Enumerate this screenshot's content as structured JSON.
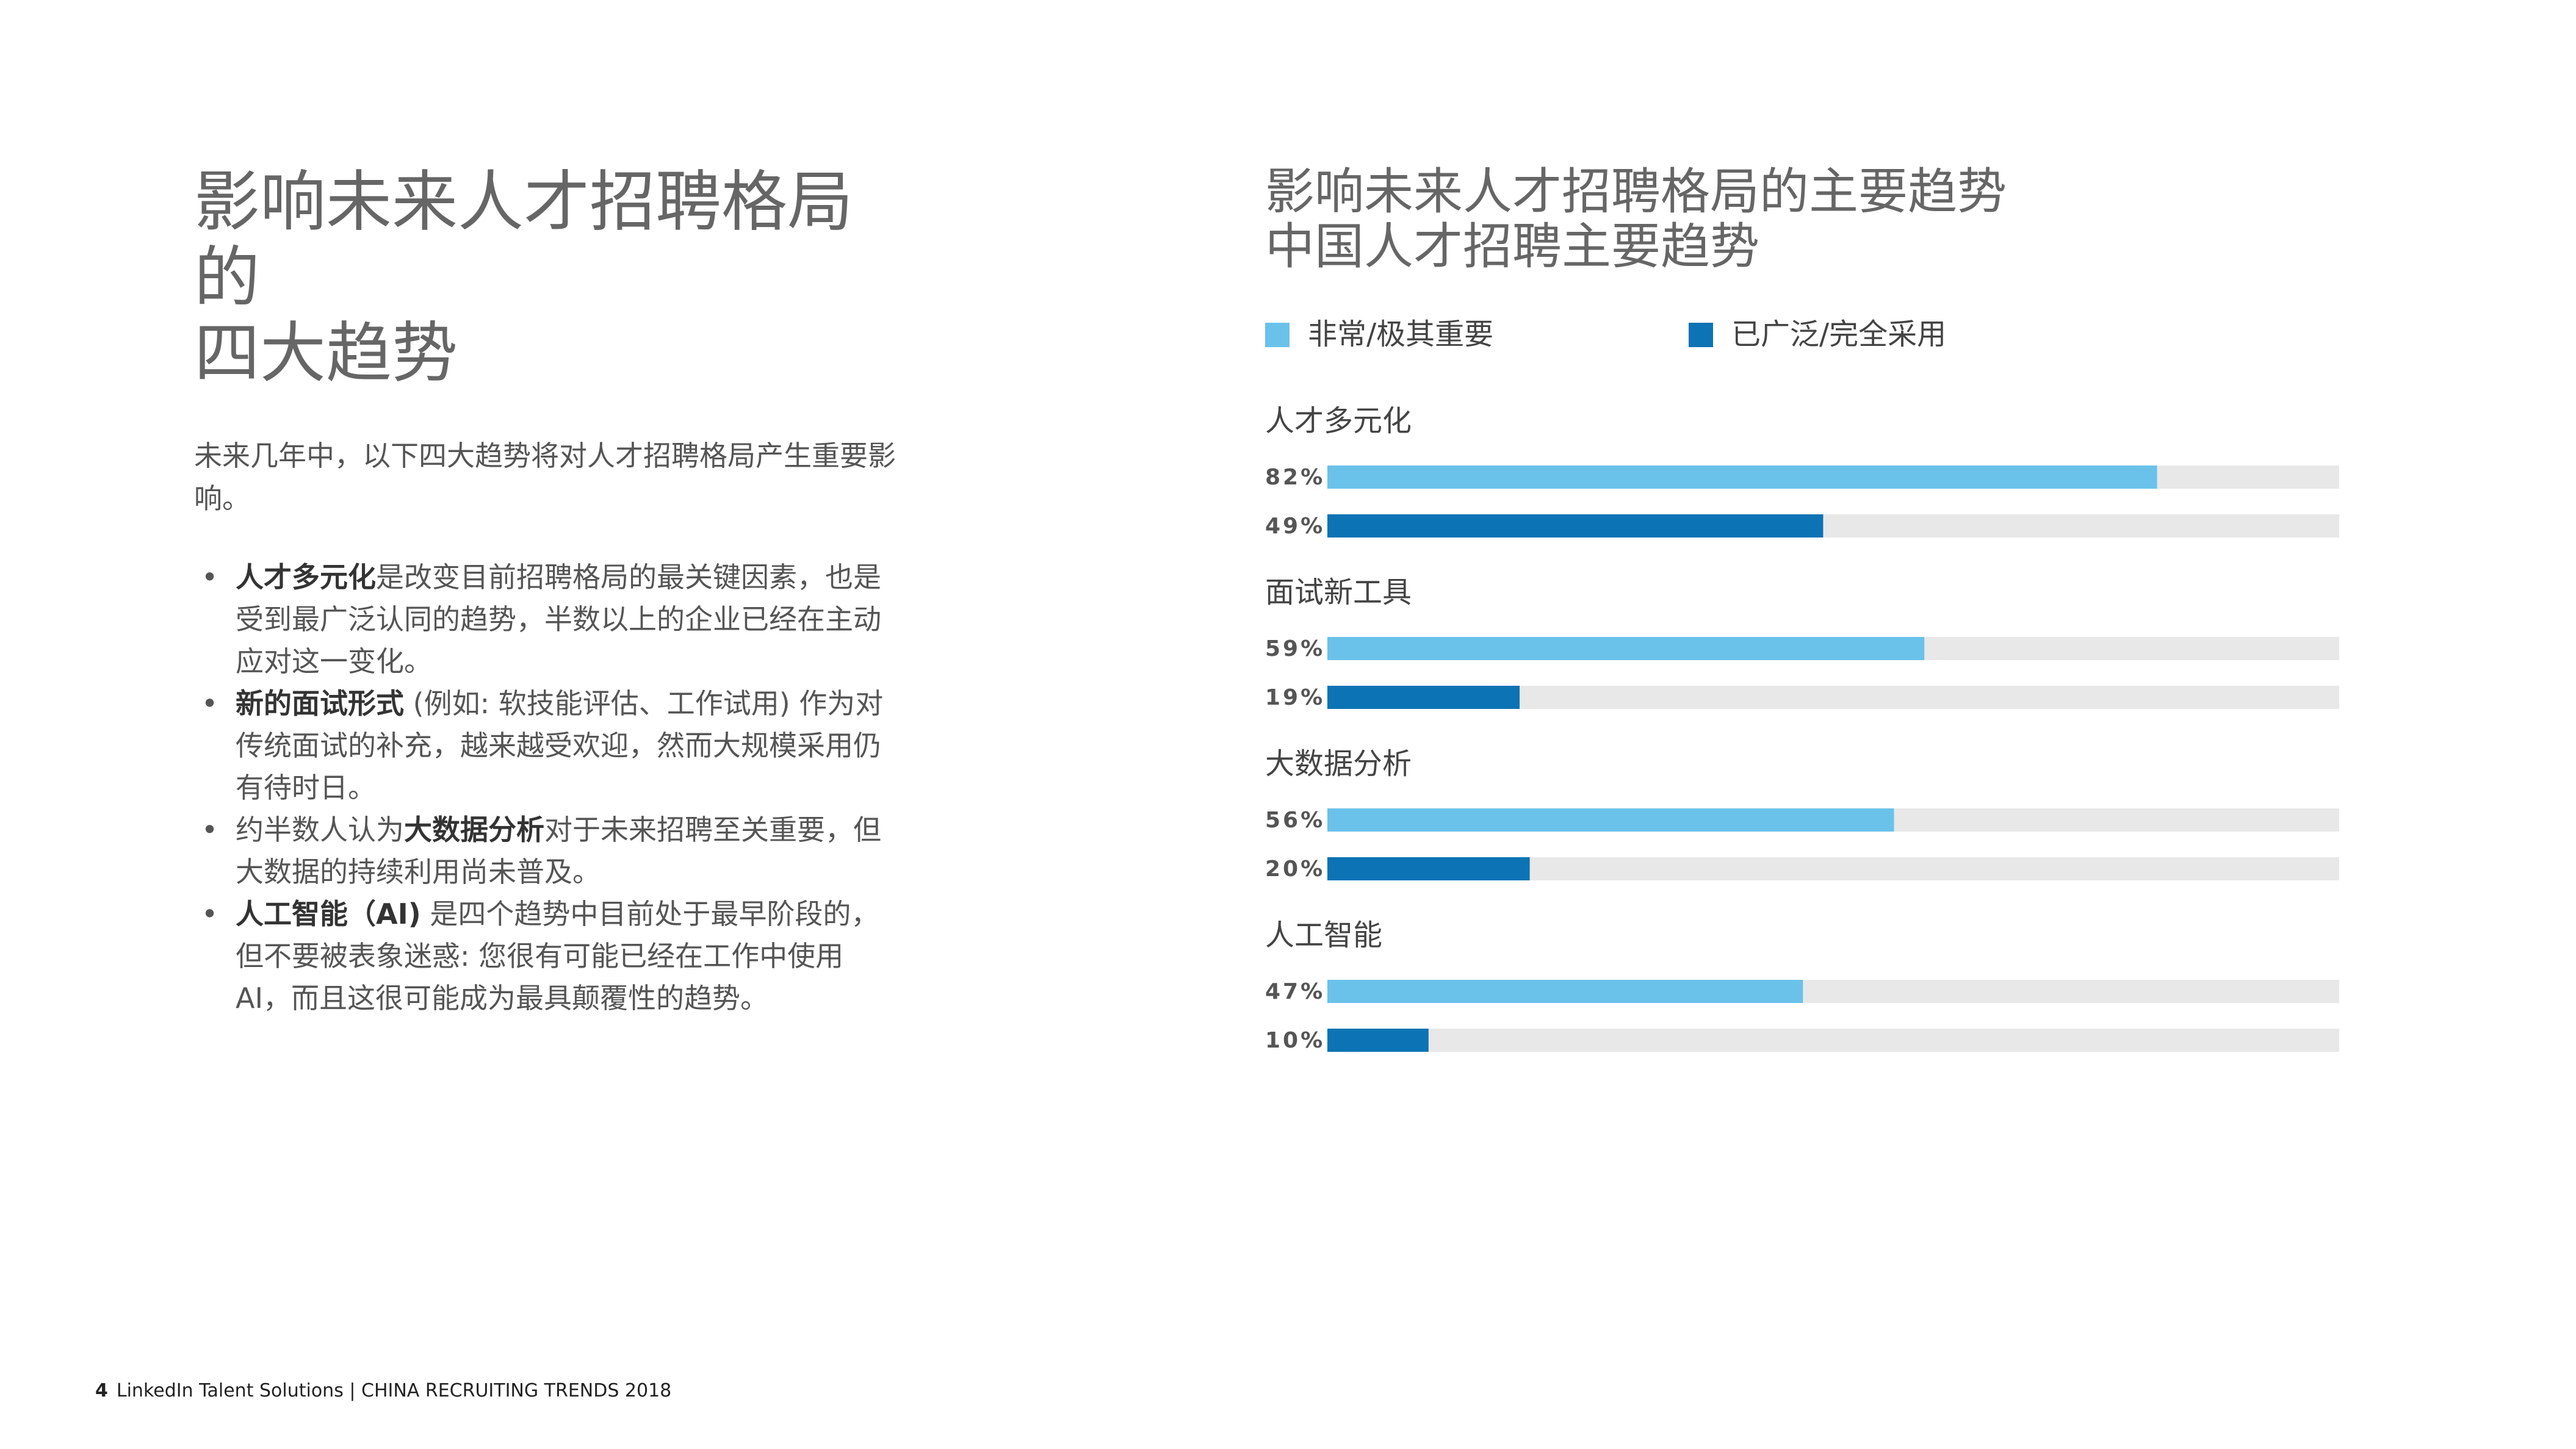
{
  "left": {
    "title": [
      "影响未来人才招聘格局的",
      "四大趋势"
    ],
    "intro": "未来几年中，以下四大趋势将对人才招聘格局产生重要影响。",
    "bullets": [
      [
        {
          "text": "人才多元化",
          "bold": true
        },
        {
          "text": "是改变目前招聘格局的最关键因素，也是受到最广泛认同的趋势，半数以上的企业已经在主动应对这一变化。"
        }
      ],
      [
        {
          "text": "新的面试形式",
          "bold": true
        },
        {
          "text": " (例如: 软技能评估、工作试用) 作为对传统面试的补充，越来越受欢迎，然而大规模采用仍有待时日。"
        }
      ],
      [
        {
          "text": "约半数人认为"
        },
        {
          "text": "大数据分析",
          "bold": true
        },
        {
          "text": "对于未来招聘至关重要，但大数据的持续利用尚未普及。"
        }
      ],
      [
        {
          "text": "人工智能（AI)",
          "bold": true
        },
        {
          "text": " 是四个趋势中目前处于最早阶段的，但不要被表象迷惑: 您很有可能已经在工作中使用 AI，而且这很可能成为最具颠覆性的趋势。"
        }
      ]
    ]
  },
  "chart_data": {
    "type": "bar",
    "title": "影响未来人才招聘格局的主要趋势",
    "subtitle": "中国人才招聘主要趋势",
    "categories": [
      "人才多元化",
      "面试新工具",
      "大数据分析",
      "人工智能"
    ],
    "series": [
      {
        "name": "非常/极其重要",
        "color": "#6ac2ea",
        "values": [
          82,
          59,
          56,
          47
        ],
        "value_labels": [
          "82%",
          "59%",
          "56%",
          "47%"
        ]
      },
      {
        "name": "已广泛/完全采用",
        "color": "#0c73b4",
        "values": [
          49,
          19,
          20,
          10
        ],
        "value_labels": [
          "49%",
          "19%",
          "20%",
          "10%"
        ]
      }
    ],
    "xlim": [
      0,
      100
    ],
    "track_color": "#e8e8e8"
  },
  "footer": {
    "page": "4",
    "text": "LinkedIn Talent Solutions | CHINA RECRUITING TRENDS 2018"
  }
}
